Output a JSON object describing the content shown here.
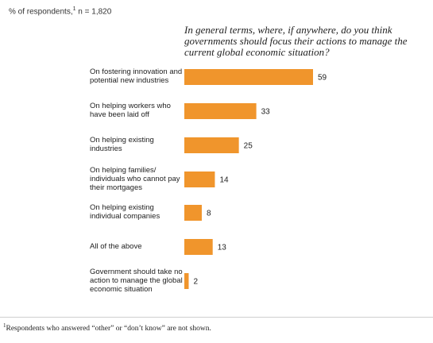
{
  "header": {
    "subtitle_prefix": "% of respondents,",
    "subtitle_sup": "1",
    "subtitle_suffix": " n = 1,820",
    "question": "In general terms, where, if anywhere, do you think governments should focus their actions to manage the current global economic situation?"
  },
  "footnote": {
    "sup": "1",
    "text": "Respondents who answered “other” or “don’t know” are not shown."
  },
  "colors": {
    "bar": "#f0952c"
  },
  "chart_data": {
    "type": "bar",
    "orientation": "horizontal",
    "title": "In general terms, where, if anywhere, do you think governments should focus their actions to manage the current global economic situation?",
    "categories": [
      "On fostering innovation and potential new industries",
      "On helping workers who have been laid off",
      "On helping existing industries",
      "On helping families/ individuals who cannot pay their mortgages",
      "On helping existing individual companies",
      "All of the above",
      "Government should take no action to manage the global economic situation"
    ],
    "values": [
      59,
      33,
      25,
      14,
      8,
      13,
      2
    ],
    "xlim": [
      0,
      59
    ],
    "grid": false,
    "legend": "none"
  }
}
